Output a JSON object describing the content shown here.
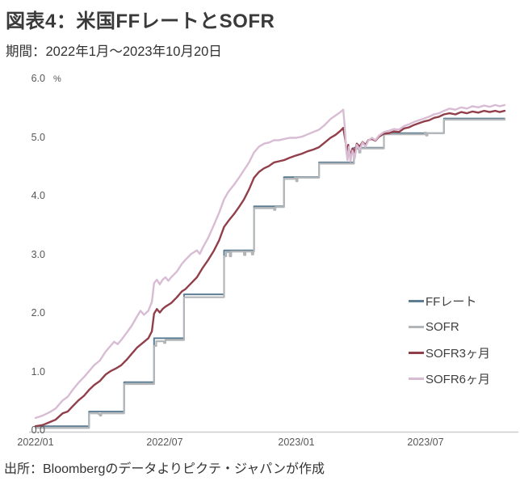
{
  "header": {
    "title": "図表4：米国FFレートとSOFR",
    "subtitle": "期間：2022年1月～2023年10月20日"
  },
  "footer": {
    "source": "出所：Bloombergのデータよりピクテ・ジャパンが作成"
  },
  "chart_data": {
    "type": "line",
    "title": "図表4：米国FFレートとSOFR",
    "subtitle": "期間：2022年1月～2023年10月20日",
    "grid": false,
    "legend_position": "right-middle",
    "x_axis": {
      "label": "",
      "start_date": "2022/01/01",
      "end_date": "2023/10/20",
      "domain_days": [
        0,
        657
      ],
      "tick_days": [
        0,
        181,
        365,
        546
      ],
      "tick_labels": [
        "2022/01",
        "2022/07",
        "2023/01",
        "2023/07"
      ]
    },
    "y_axis": {
      "unit": "%",
      "domain": [
        0,
        6
      ],
      "tick_values": [
        6,
        5,
        4,
        3,
        2,
        1,
        0
      ],
      "tick_labels": [
        "6.0",
        "5.0",
        "4.0",
        "3.0",
        "2.0",
        "1.0",
        "0.0"
      ]
    },
    "series": [
      {
        "name": "FFレート",
        "color": "#5d7d92",
        "style": "step",
        "width": 2,
        "points": [
          [
            0,
            0.08
          ],
          [
            75,
            0.33
          ],
          [
            124,
            0.83
          ],
          [
            166,
            1.58
          ],
          [
            208,
            2.33
          ],
          [
            264,
            3.08
          ],
          [
            306,
            3.83
          ],
          [
            348,
            4.33
          ],
          [
            397,
            4.58
          ],
          [
            446,
            4.83
          ],
          [
            488,
            5.08
          ],
          [
            572,
            5.33
          ],
          [
            657,
            5.33
          ]
        ]
      },
      {
        "name": "SOFR",
        "color": "#b3b6b8",
        "style": "step",
        "width": 2.2,
        "points": [
          [
            0,
            0.05
          ],
          [
            75,
            0.3
          ],
          [
            88,
            0.29
          ],
          [
            90,
            0.26
          ],
          [
            92,
            0.3
          ],
          [
            124,
            0.8
          ],
          [
            166,
            1.45
          ],
          [
            169,
            1.53
          ],
          [
            180,
            1.5
          ],
          [
            182,
            1.55
          ],
          [
            208,
            2.28
          ],
          [
            264,
            2.98
          ],
          [
            267,
            3.05
          ],
          [
            272,
            2.98
          ],
          [
            274,
            3.06
          ],
          [
            292,
            3.0
          ],
          [
            294,
            3.06
          ],
          [
            303,
            3.01
          ],
          [
            305,
            3.06
          ],
          [
            306,
            3.8
          ],
          [
            334,
            3.77
          ],
          [
            336,
            3.82
          ],
          [
            348,
            4.3
          ],
          [
            363,
            4.32
          ],
          [
            365,
            4.26
          ],
          [
            367,
            4.32
          ],
          [
            397,
            4.56
          ],
          [
            446,
            4.81
          ],
          [
            453,
            4.75
          ],
          [
            455,
            4.82
          ],
          [
            488,
            5.06
          ],
          [
            545,
            5.09
          ],
          [
            547,
            5.04
          ],
          [
            549,
            5.08
          ],
          [
            572,
            5.31
          ],
          [
            657,
            5.32
          ]
        ]
      },
      {
        "name": "SOFR3ヶ月",
        "color": "#913f4a",
        "style": "line",
        "width": 2.4,
        "points": [
          [
            0,
            0.08
          ],
          [
            10,
            0.1
          ],
          [
            20,
            0.15
          ],
          [
            28,
            0.19
          ],
          [
            38,
            0.3
          ],
          [
            45,
            0.33
          ],
          [
            52,
            0.42
          ],
          [
            60,
            0.52
          ],
          [
            68,
            0.6
          ],
          [
            75,
            0.7
          ],
          [
            82,
            0.78
          ],
          [
            90,
            0.85
          ],
          [
            98,
            0.96
          ],
          [
            105,
            1.02
          ],
          [
            112,
            1.06
          ],
          [
            120,
            1.12
          ],
          [
            128,
            1.22
          ],
          [
            135,
            1.32
          ],
          [
            142,
            1.42
          ],
          [
            150,
            1.5
          ],
          [
            158,
            1.58
          ],
          [
            163,
            1.7
          ],
          [
            166,
            2.0
          ],
          [
            170,
            2.08
          ],
          [
            174,
            2.02
          ],
          [
            178,
            2.08
          ],
          [
            182,
            2.12
          ],
          [
            190,
            2.18
          ],
          [
            198,
            2.28
          ],
          [
            205,
            2.38
          ],
          [
            210,
            2.42
          ],
          [
            218,
            2.52
          ],
          [
            226,
            2.62
          ],
          [
            234,
            2.78
          ],
          [
            242,
            2.92
          ],
          [
            250,
            3.08
          ],
          [
            257,
            3.25
          ],
          [
            264,
            3.48
          ],
          [
            270,
            3.58
          ],
          [
            278,
            3.7
          ],
          [
            285,
            3.82
          ],
          [
            292,
            3.95
          ],
          [
            299,
            4.12
          ],
          [
            306,
            4.32
          ],
          [
            313,
            4.42
          ],
          [
            320,
            4.48
          ],
          [
            327,
            4.52
          ],
          [
            334,
            4.58
          ],
          [
            341,
            4.6
          ],
          [
            348,
            4.62
          ],
          [
            356,
            4.66
          ],
          [
            365,
            4.7
          ],
          [
            373,
            4.73
          ],
          [
            381,
            4.77
          ],
          [
            389,
            4.8
          ],
          [
            397,
            4.84
          ],
          [
            405,
            4.92
          ],
          [
            413,
            5.0
          ],
          [
            420,
            5.05
          ],
          [
            427,
            5.12
          ],
          [
            431,
            5.17
          ],
          [
            434,
            4.95
          ],
          [
            436,
            4.72
          ],
          [
            438,
            4.88
          ],
          [
            441,
            4.7
          ],
          [
            444,
            4.82
          ],
          [
            447,
            4.75
          ],
          [
            450,
            4.9
          ],
          [
            454,
            4.85
          ],
          [
            458,
            4.93
          ],
          [
            462,
            4.88
          ],
          [
            466,
            4.96
          ],
          [
            471,
            4.98
          ],
          [
            476,
            4.95
          ],
          [
            481,
            5.02
          ],
          [
            488,
            5.07
          ],
          [
            495,
            5.08
          ],
          [
            502,
            5.11
          ],
          [
            509,
            5.1
          ],
          [
            516,
            5.16
          ],
          [
            523,
            5.18
          ],
          [
            530,
            5.22
          ],
          [
            537,
            5.25
          ],
          [
            544,
            5.28
          ],
          [
            551,
            5.3
          ],
          [
            558,
            5.34
          ],
          [
            565,
            5.36
          ],
          [
            572,
            5.4
          ],
          [
            580,
            5.42
          ],
          [
            588,
            5.4
          ],
          [
            596,
            5.44
          ],
          [
            604,
            5.42
          ],
          [
            612,
            5.45
          ],
          [
            620,
            5.43
          ],
          [
            628,
            5.46
          ],
          [
            636,
            5.44
          ],
          [
            644,
            5.46
          ],
          [
            650,
            5.44
          ],
          [
            657,
            5.46
          ]
        ]
      },
      {
        "name": "SOFR6ヶ月",
        "color": "#d8bcd4",
        "style": "line",
        "width": 2.4,
        "points": [
          [
            0,
            0.22
          ],
          [
            10,
            0.26
          ],
          [
            20,
            0.32
          ],
          [
            28,
            0.38
          ],
          [
            38,
            0.52
          ],
          [
            45,
            0.58
          ],
          [
            52,
            0.7
          ],
          [
            60,
            0.82
          ],
          [
            68,
            0.92
          ],
          [
            75,
            1.02
          ],
          [
            82,
            1.12
          ],
          [
            90,
            1.2
          ],
          [
            98,
            1.35
          ],
          [
            105,
            1.45
          ],
          [
            110,
            1.52
          ],
          [
            115,
            1.48
          ],
          [
            120,
            1.55
          ],
          [
            128,
            1.68
          ],
          [
            135,
            1.8
          ],
          [
            142,
            1.95
          ],
          [
            147,
            2.05
          ],
          [
            152,
            1.98
          ],
          [
            158,
            2.05
          ],
          [
            163,
            2.2
          ],
          [
            166,
            2.52
          ],
          [
            170,
            2.58
          ],
          [
            174,
            2.5
          ],
          [
            178,
            2.58
          ],
          [
            182,
            2.62
          ],
          [
            186,
            2.56
          ],
          [
            190,
            2.62
          ],
          [
            198,
            2.72
          ],
          [
            205,
            2.85
          ],
          [
            210,
            2.92
          ],
          [
            218,
            3.02
          ],
          [
            226,
            3.08
          ],
          [
            230,
            3.02
          ],
          [
            234,
            3.12
          ],
          [
            242,
            3.3
          ],
          [
            250,
            3.52
          ],
          [
            257,
            3.72
          ],
          [
            264,
            3.95
          ],
          [
            270,
            4.08
          ],
          [
            278,
            4.2
          ],
          [
            285,
            4.32
          ],
          [
            292,
            4.45
          ],
          [
            299,
            4.58
          ],
          [
            306,
            4.75
          ],
          [
            313,
            4.85
          ],
          [
            320,
            4.9
          ],
          [
            327,
            4.92
          ],
          [
            334,
            4.96
          ],
          [
            341,
            4.96
          ],
          [
            348,
            4.98
          ],
          [
            356,
            5.0
          ],
          [
            365,
            5.0
          ],
          [
            373,
            5.02
          ],
          [
            381,
            5.06
          ],
          [
            389,
            5.1
          ],
          [
            397,
            5.14
          ],
          [
            405,
            5.22
          ],
          [
            413,
            5.32
          ],
          [
            420,
            5.38
          ],
          [
            427,
            5.44
          ],
          [
            431,
            5.48
          ],
          [
            433,
            5.2
          ],
          [
            435,
            4.8
          ],
          [
            437,
            4.62
          ],
          [
            439,
            4.85
          ],
          [
            441,
            4.6
          ],
          [
            444,
            4.78
          ],
          [
            447,
            4.65
          ],
          [
            450,
            4.88
          ],
          [
            454,
            4.8
          ],
          [
            458,
            4.92
          ],
          [
            462,
            4.85
          ],
          [
            466,
            4.95
          ],
          [
            471,
            5.0
          ],
          [
            476,
            4.96
          ],
          [
            481,
            5.04
          ],
          [
            488,
            5.1
          ],
          [
            495,
            5.12
          ],
          [
            502,
            5.15
          ],
          [
            509,
            5.14
          ],
          [
            516,
            5.2
          ],
          [
            523,
            5.23
          ],
          [
            530,
            5.27
          ],
          [
            537,
            5.3
          ],
          [
            544,
            5.33
          ],
          [
            551,
            5.36
          ],
          [
            558,
            5.4
          ],
          [
            565,
            5.42
          ],
          [
            572,
            5.46
          ],
          [
            580,
            5.5
          ],
          [
            588,
            5.48
          ],
          [
            596,
            5.52
          ],
          [
            604,
            5.5
          ],
          [
            612,
            5.54
          ],
          [
            620,
            5.52
          ],
          [
            628,
            5.55
          ],
          [
            636,
            5.53
          ],
          [
            644,
            5.56
          ],
          [
            650,
            5.54
          ],
          [
            657,
            5.56
          ]
        ]
      }
    ]
  }
}
